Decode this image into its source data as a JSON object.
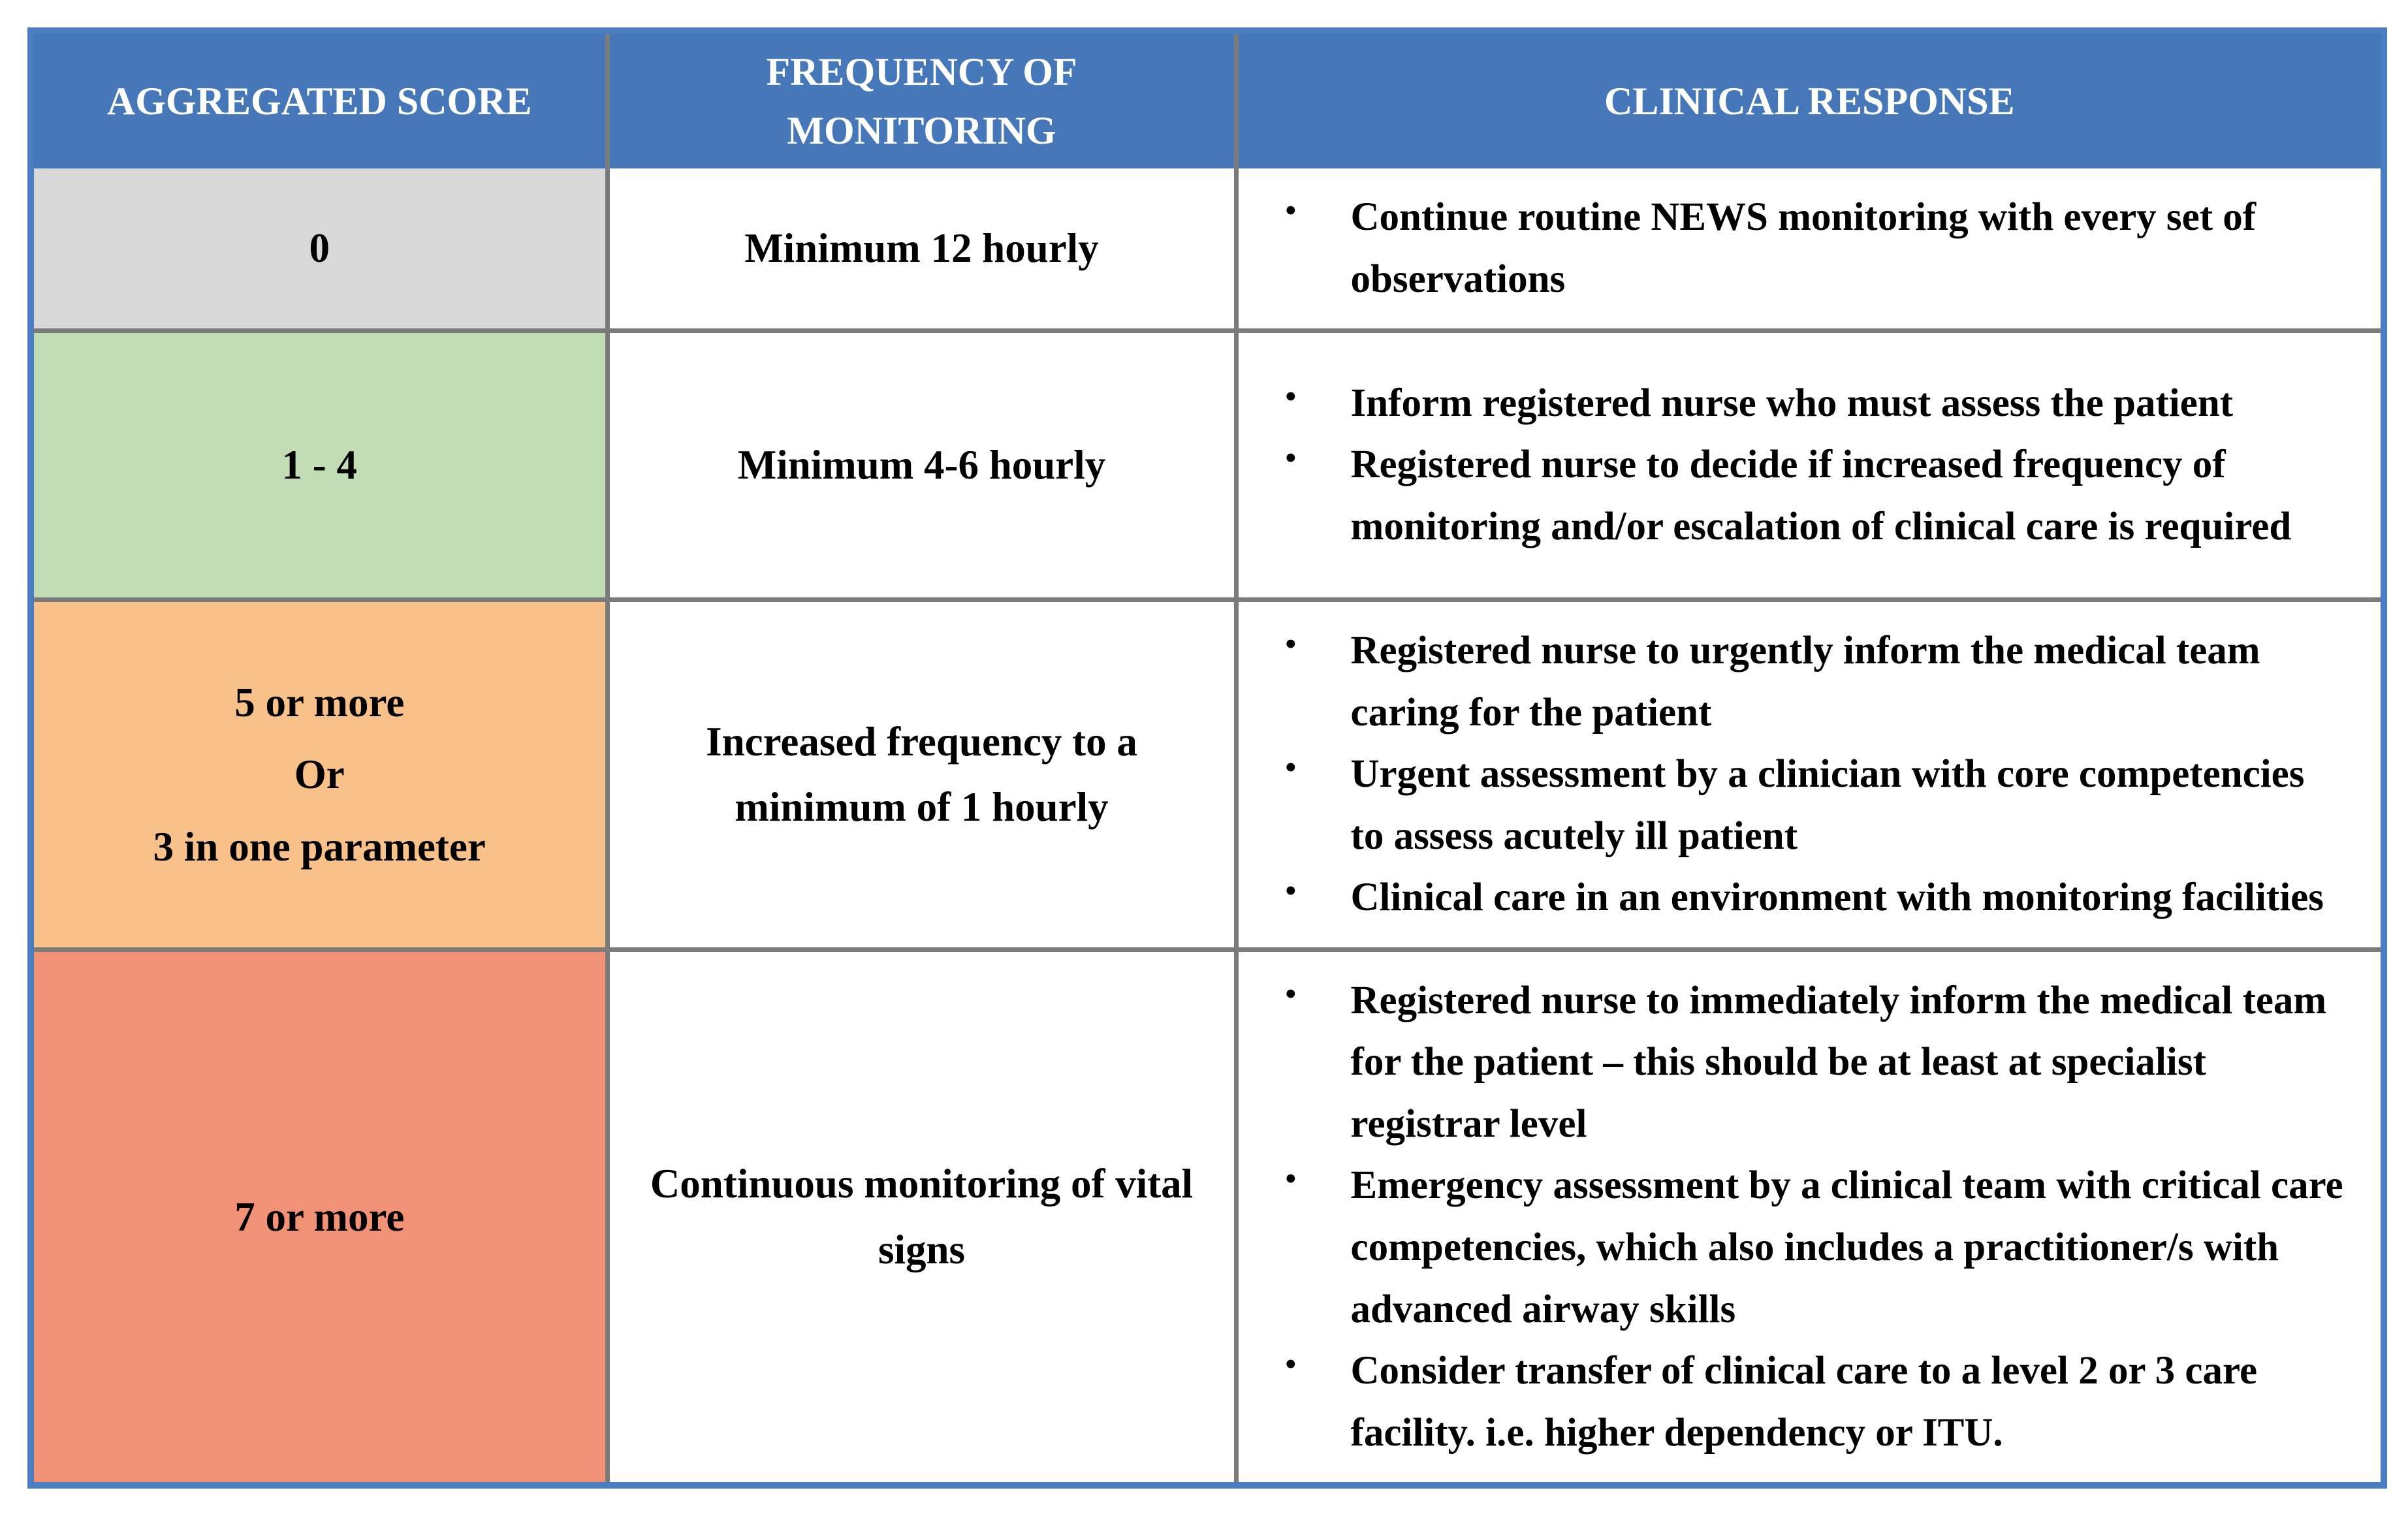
{
  "table": {
    "headers": [
      "AGGREGATED SCORE",
      "FREQUENCY OF MONITORING",
      "CLINICAL RESPONSE"
    ],
    "rows": [
      {
        "score": "0",
        "frequency": "Minimum 12 hourly",
        "responses": [
          "Continue routine NEWS monitoring with every set of observations"
        ]
      },
      {
        "score": "1 - 4",
        "frequency": "Minimum 4-6 hourly",
        "responses": [
          "Inform registered nurse who must assess the patient",
          "Registered nurse to decide if increased frequency of monitoring and/or escalation of clinical care is required"
        ]
      },
      {
        "score_lines": [
          "5 or more",
          "Or",
          "3 in one parameter"
        ],
        "frequency": "Increased frequency to a minimum of 1 hourly",
        "responses": [
          "Registered nurse to urgently inform the medical team caring for the patient",
          "Urgent assessment by a clinician with core competencies to assess acutely ill patient",
          "Clinical care in an environment with monitoring facilities"
        ]
      },
      {
        "score": "7 or more",
        "frequency": "Continuous monitoring of vital signs",
        "responses": [
          "Registered nurse to immediately inform the medical team for the patient – this should be at least at specialist registrar level",
          "Emergency assessment by a clinical team with critical care competencies, which also includes a practitioner/s with advanced airway skills",
          "Consider transfer of clinical care to a level 2 or 3 care facility. i.e. higher dependency or ITU."
        ]
      }
    ]
  },
  "colors": {
    "header_bg": "#4677B9",
    "header_text": "#FFFFFF",
    "outer_border": "#4A7CC1",
    "grid_line": "#7B7B7B",
    "score_0_bg": "#D8D8D8",
    "score_1_4_bg": "#C2DDB6",
    "score_5_bg": "#F8C189",
    "score_7_bg": "#F19175",
    "body_text": "#000000"
  }
}
